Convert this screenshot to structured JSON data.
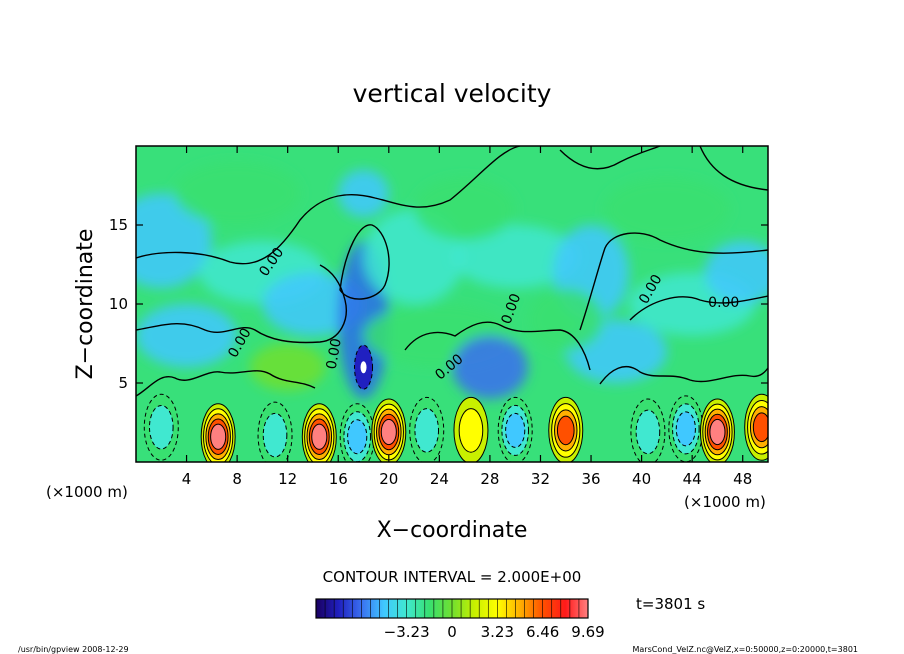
{
  "chart_data": {
    "type": "heatmap",
    "title": "vertical velocity",
    "xlabel": "X−coordinate",
    "ylabel": "Z−coordinate",
    "x_unit_left": "(×1000 m)",
    "x_unit_right": "(×1000 m)",
    "xlim": [
      0,
      50
    ],
    "ylim": [
      0,
      20
    ],
    "x_ticks": [
      4,
      8,
      12,
      16,
      20,
      24,
      28,
      32,
      36,
      40,
      44,
      48
    ],
    "y_ticks": [
      5,
      10,
      15
    ],
    "x_tick_labels": [
      "4",
      "8",
      "12",
      "16",
      "20",
      "24",
      "28",
      "32",
      "36",
      "40",
      "44",
      "48"
    ],
    "y_tick_labels": [
      "5",
      "10",
      "15"
    ],
    "contour_interval_text": "CONTOUR INTERVAL = 2.000E+00",
    "contour_labels": [
      "0.00",
      "0.00",
      "0.00",
      "0.00",
      "0.00",
      "0.00",
      "0.00"
    ],
    "colorbar": {
      "min": -9.69,
      "max": 9.69,
      "tick_values": [
        -3.23,
        0,
        3.23,
        6.46,
        9.69
      ],
      "tick_labels": [
        "−3.23",
        "0",
        "3.23",
        "6.46",
        "9.69"
      ],
      "colors": [
        "#1a0060",
        "#2020c0",
        "#3a6ff0",
        "#40c8ff",
        "#40e8d0",
        "#38e070",
        "#70e030",
        "#c8f000",
        "#ffff00",
        "#ffb000",
        "#ff5000",
        "#ff1a1a",
        "#ff8080"
      ]
    },
    "time_label": "t=3801 s",
    "footer_left": "/usr/bin/gpview   2008-12-29",
    "footer_right": "MarsCond_VelZ.nc@VelZ,x=0:50000,z=0:20000,t=3801",
    "cells_low_band": [
      {
        "x": 2,
        "z": 2.2,
        "w": -3
      },
      {
        "x": 6.5,
        "z": 1.6,
        "w": 9
      },
      {
        "x": 11,
        "z": 1.7,
        "w": -4
      },
      {
        "x": 14.5,
        "z": 1.6,
        "w": 9
      },
      {
        "x": 17.5,
        "z": 1.6,
        "w": -5
      },
      {
        "x": 20,
        "z": 1.9,
        "w": 9
      },
      {
        "x": 23,
        "z": 2.0,
        "w": -4
      },
      {
        "x": 26.5,
        "z": 2.0,
        "w": 4
      },
      {
        "x": 30,
        "z": 2.0,
        "w": -5
      },
      {
        "x": 34,
        "z": 2.0,
        "w": 7
      },
      {
        "x": 40.5,
        "z": 1.9,
        "w": -4
      },
      {
        "x": 43.5,
        "z": 2.1,
        "w": -5
      },
      {
        "x": 46,
        "z": 1.9,
        "w": 9
      },
      {
        "x": 49.5,
        "z": 2.2,
        "w": 7
      }
    ]
  }
}
